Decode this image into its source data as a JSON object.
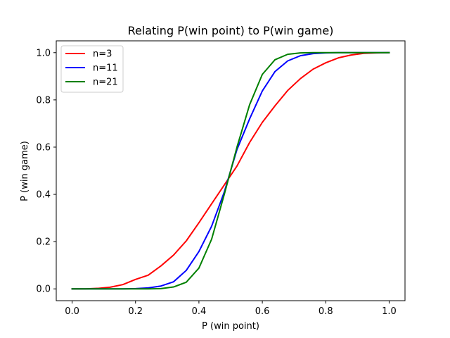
{
  "chart_data": {
    "type": "line",
    "title": "Relating P(win point) to P(win game)",
    "xlabel": "P (win point)",
    "ylabel": "P (win game)",
    "xlim": [
      -0.05,
      1.05
    ],
    "ylim": [
      -0.05,
      1.05
    ],
    "xticks": [
      0.0,
      0.2,
      0.4,
      0.6,
      0.8,
      1.0
    ],
    "xtick_labels": [
      "0.0",
      "0.2",
      "0.4",
      "0.6",
      "0.8",
      "1.0"
    ],
    "yticks": [
      0.0,
      0.2,
      0.4,
      0.6,
      0.8,
      1.0
    ],
    "ytick_labels": [
      "0.0",
      "0.2",
      "0.4",
      "0.6",
      "0.8",
      "1.0"
    ],
    "grid": false,
    "legend_position": "upper-left",
    "x": [
      0.0,
      0.04,
      0.08,
      0.12,
      0.16,
      0.2,
      0.24,
      0.28,
      0.32,
      0.36,
      0.4,
      0.44,
      0.48,
      0.52,
      0.56,
      0.6,
      0.64,
      0.68,
      0.72,
      0.76,
      0.8,
      0.84,
      0.88,
      0.92,
      0.96,
      1.0
    ],
    "series": [
      {
        "name": "n=3",
        "color": "#ff0000",
        "values": [
          0.0,
          0.0,
          0.002,
          0.007,
          0.018,
          0.04,
          0.058,
          0.097,
          0.143,
          0.203,
          0.28,
          0.36,
          0.44,
          0.52,
          0.62,
          0.705,
          0.775,
          0.84,
          0.89,
          0.93,
          0.957,
          0.978,
          0.99,
          0.997,
          0.999,
          1.0
        ]
      },
      {
        "name": "n=11",
        "color": "#0000ff",
        "values": [
          0.0,
          0.0,
          0.0,
          0.0,
          0.0,
          0.001,
          0.004,
          0.012,
          0.03,
          0.078,
          0.158,
          0.265,
          0.41,
          0.59,
          0.72,
          0.838,
          0.92,
          0.965,
          0.987,
          0.996,
          0.999,
          1.0,
          1.0,
          1.0,
          1.0,
          1.0
        ]
      },
      {
        "name": "n=21",
        "color": "#008000",
        "values": [
          0.0,
          0.0,
          0.0,
          0.0,
          0.0,
          0.0,
          0.0,
          0.001,
          0.008,
          0.028,
          0.088,
          0.21,
          0.4,
          0.6,
          0.78,
          0.908,
          0.97,
          0.993,
          0.999,
          1.0,
          1.0,
          1.0,
          1.0,
          1.0,
          1.0,
          1.0
        ]
      }
    ]
  }
}
